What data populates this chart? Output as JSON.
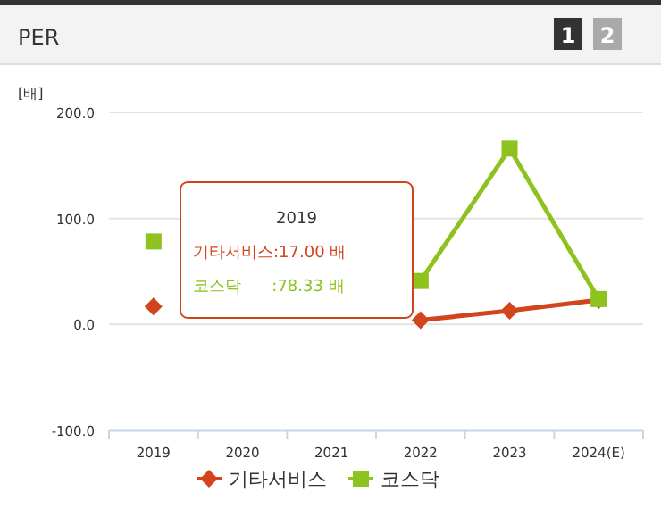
{
  "chart_data": {
    "type": "line",
    "title": "PER",
    "ylabel": "[배]",
    "categories": [
      "2019",
      "2020",
      "2021",
      "2022",
      "2023",
      "2024(E)"
    ],
    "series": [
      {
        "name": "기타서비스",
        "color": "#d2441b",
        "marker": "diamond",
        "values": [
          17,
          null,
          null,
          4,
          13,
          23
        ]
      },
      {
        "name": "코스닥",
        "color": "#8dc21f",
        "marker": "square",
        "values": [
          78.33,
          null,
          null,
          41,
          166,
          24
        ]
      }
    ],
    "ylim": [
      -100,
      200
    ],
    "yticks": [
      {
        "value": -100,
        "label": "-100.0"
      },
      {
        "value": 0,
        "label": "0.0"
      },
      {
        "value": 100,
        "label": "100.0"
      },
      {
        "value": 200,
        "label": "200.0"
      }
    ],
    "grid": "y",
    "legend": "bottom",
    "annotations": [
      "1",
      "2",
      "2019",
      "기타서비스:17.00 배",
      "코스닥      :78.33 배"
    ]
  }
}
